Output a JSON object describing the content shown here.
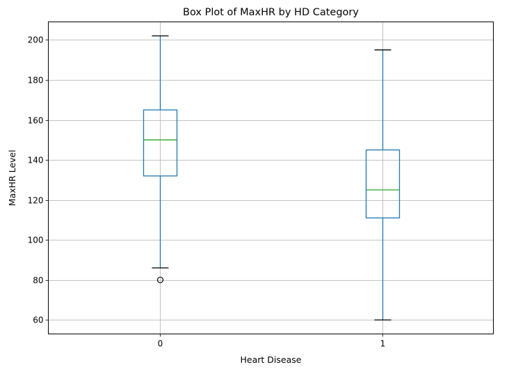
{
  "chart_data": {
    "type": "box",
    "title": "Box Plot of MaxHR by HD Category",
    "xlabel": "Heart Disease",
    "ylabel": "MaxHR Level",
    "categories": [
      "0",
      "1"
    ],
    "ylim": [
      53,
      209
    ],
    "yticks": [
      60,
      80,
      100,
      120,
      140,
      160,
      180,
      200
    ],
    "grid": true,
    "boxes": [
      {
        "category": "0",
        "whisker_low": 86,
        "q1": 132,
        "median": 150,
        "q3": 165,
        "whisker_high": 202,
        "outliers": [
          80
        ]
      },
      {
        "category": "1",
        "whisker_low": 60,
        "q1": 111,
        "median": 125,
        "q3": 145,
        "whisker_high": 195,
        "outliers": []
      }
    ],
    "colors": {
      "box": "#1f77b4",
      "median": "#2ca02c",
      "whisker_cap": "#000000",
      "grid": "#b0b0b0",
      "outlier": "#000000"
    }
  }
}
